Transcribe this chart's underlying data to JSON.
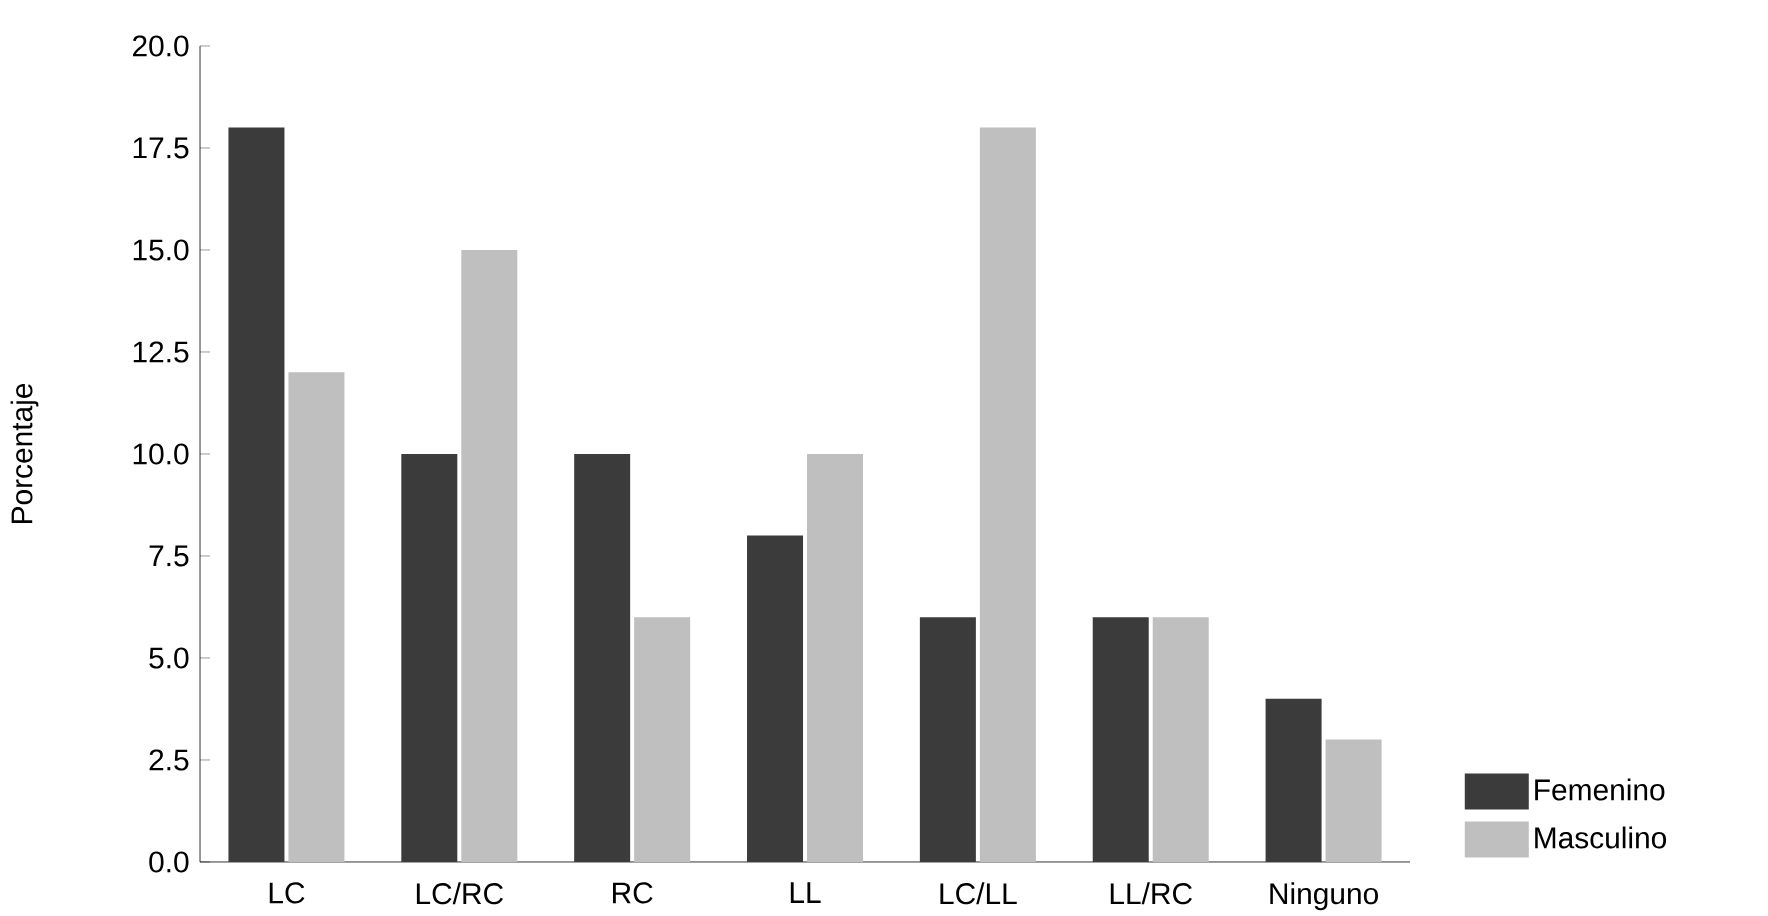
{
  "chart_data": {
    "type": "bar",
    "ylabel": "Porcentaje",
    "categories": [
      "LC",
      "LC/RC",
      "RC",
      "LL",
      "LC/LL",
      "LL/RC",
      "Ninguno"
    ],
    "series": [
      {
        "name": "Femenino",
        "color": "#3b3b3b",
        "values": [
          18,
          10,
          10,
          8,
          6,
          6,
          4
        ]
      },
      {
        "name": "Masculino",
        "color": "#bfbfbf",
        "values": [
          12,
          15,
          6,
          10,
          18,
          6,
          3
        ]
      }
    ],
    "ylim": [
      0,
      20
    ],
    "yticks": [
      {
        "value": 0,
        "label": "0.0"
      },
      {
        "value": 2.5,
        "label": "2.5"
      },
      {
        "value": 5,
        "label": "5.0"
      },
      {
        "value": 7.5,
        "label": "7.5"
      },
      {
        "value": 10,
        "label": "10.0"
      },
      {
        "value": 12.5,
        "label": "12.5"
      },
      {
        "value": 15,
        "label": "15.0"
      },
      {
        "value": 17.5,
        "label": "17.5"
      },
      {
        "value": 20,
        "label": "20.0"
      }
    ],
    "grid": false,
    "legend": "bottom right"
  }
}
